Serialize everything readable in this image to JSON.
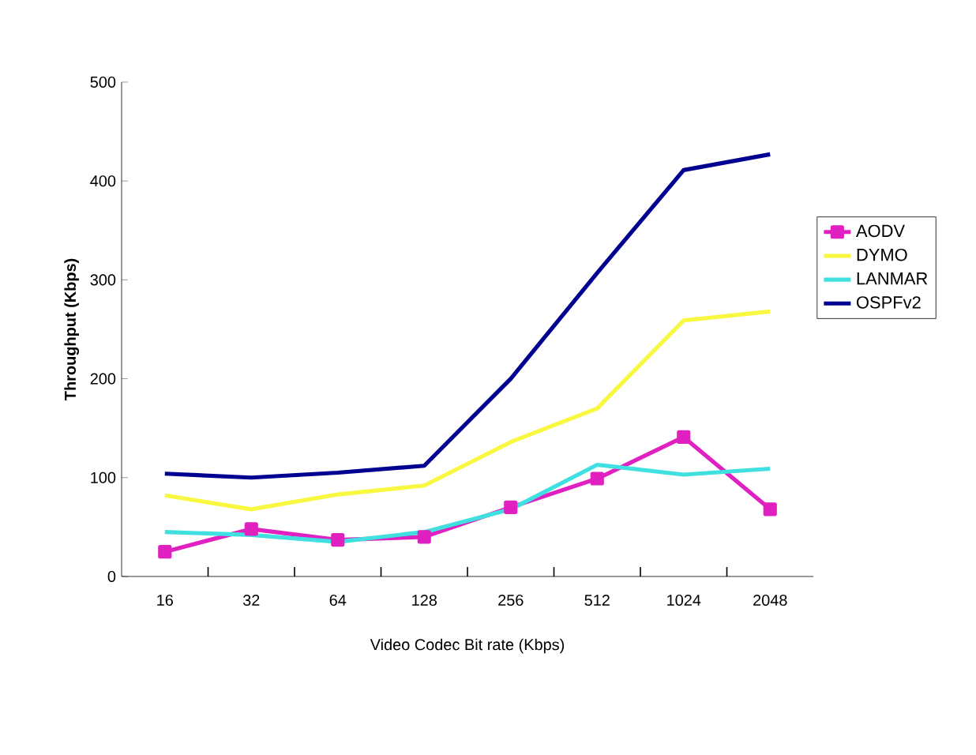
{
  "chart_data": {
    "type": "line",
    "xlabel": "Video Codec Bit rate (Kbps)",
    "ylabel": "Throughput  (Kbps)",
    "categories": [
      "16",
      "32",
      "64",
      "128",
      "256",
      "512",
      "1024",
      "2048"
    ],
    "ylim": [
      0,
      500
    ],
    "yticks": [
      0,
      100,
      200,
      300,
      400,
      500
    ],
    "grid": false,
    "legend": "right",
    "series": [
      {
        "name": "AODV",
        "color": "#e020c0",
        "marker": "square",
        "values": [
          25,
          48,
          37,
          40,
          70,
          99,
          141,
          68
        ]
      },
      {
        "name": "DYMO",
        "color": "#f8f840",
        "marker": "none",
        "values": [
          82,
          68,
          83,
          92,
          136,
          170,
          259,
          268
        ]
      },
      {
        "name": "LANMAR",
        "color": "#40e0e0",
        "marker": "none",
        "values": [
          45,
          42,
          35,
          45,
          68,
          113,
          103,
          109
        ]
      },
      {
        "name": "OSPFv2",
        "color": "#000090",
        "marker": "none",
        "values": [
          104,
          100,
          105,
          112,
          200,
          307,
          411,
          427
        ]
      }
    ]
  }
}
